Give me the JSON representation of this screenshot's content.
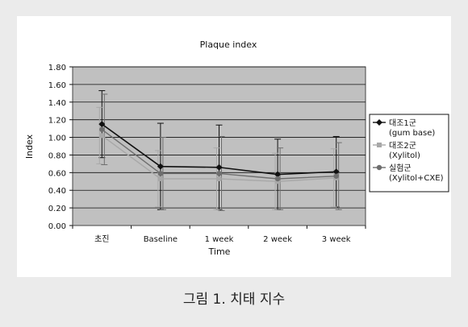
{
  "caption": "그림 1. 치태 지수",
  "colors": {
    "plot_bg": "#c0c0c0",
    "series": [
      "#111111",
      "#a8a8a8",
      "#6e6e6e"
    ]
  },
  "chart_data": {
    "type": "line",
    "title": "Plaque index",
    "xlabel": "Time",
    "ylabel": "Index",
    "categories": [
      "초진",
      "Baseline",
      "1 week",
      "2 week",
      "3 week"
    ],
    "ylim": [
      0,
      1.8
    ],
    "yticks": [
      "0.00",
      "0.20",
      "0.40",
      "0.60",
      "0.80",
      "1.00",
      "1.20",
      "1.40",
      "1.60",
      "1.80"
    ],
    "grid": true,
    "legend_position": "right",
    "series": [
      {
        "name": "대조1군\n(gum base)",
        "marker": "diamond",
        "values": [
          1.15,
          0.67,
          0.66,
          0.58,
          0.61
        ],
        "error": [
          0.38,
          0.49,
          0.48,
          0.4,
          0.4
        ]
      },
      {
        "name": "대조2군\n(Xylitol)",
        "marker": "square",
        "values": [
          1.02,
          0.53,
          0.53,
          0.5,
          0.54
        ],
        "error": [
          0.32,
          0.32,
          0.35,
          0.32,
          0.33
        ]
      },
      {
        "name": "실험군\n(Xylitol+CXE)",
        "marker": "circle",
        "values": [
          1.09,
          0.59,
          0.59,
          0.53,
          0.56
        ],
        "error": [
          0.4,
          0.41,
          0.42,
          0.35,
          0.38
        ]
      }
    ]
  }
}
